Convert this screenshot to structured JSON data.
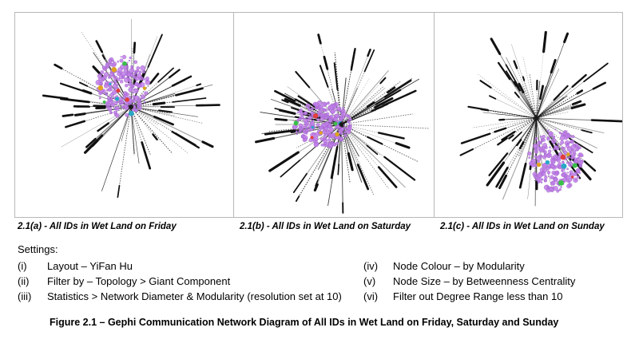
{
  "panels": [
    {
      "caption": "2.1(a) - All IDs in Wet Land on Friday"
    },
    {
      "caption": "2.1(b) - All IDs in Wet Land on Saturday"
    },
    {
      "caption": "2.1(c) - All IDs in Wet Land on Sunday"
    }
  ],
  "settings": {
    "title": "Settings:",
    "left_items": [
      {
        "num": "(i)",
        "text": "Layout – YiFan Hu"
      },
      {
        "num": "(ii)",
        "text": "Filter by – Topology > Giant Component"
      },
      {
        "num": "(iii)",
        "text": "Statistics > Network Diameter & Modularity (resolution set at 10)"
      }
    ],
    "right_items": [
      {
        "num": "(iv)",
        "text": "Node Colour – by Modularity"
      },
      {
        "num": "(v)",
        "text": "Node Size – by Betweenness Centrality"
      },
      {
        "num": "(vi)",
        "text": "Filter out Degree Range less than 10"
      }
    ]
  },
  "figure_title": "Figure 2.1 – Gephi Communication Network Diagram of All IDs in Wet Land on Friday, Saturday and Sunday",
  "colors": {
    "node_main": "#c07ee8",
    "edge": "#111111",
    "accents": [
      "#29a7c7",
      "#e0a21d",
      "#3cc04a",
      "#e23d3d"
    ]
  }
}
